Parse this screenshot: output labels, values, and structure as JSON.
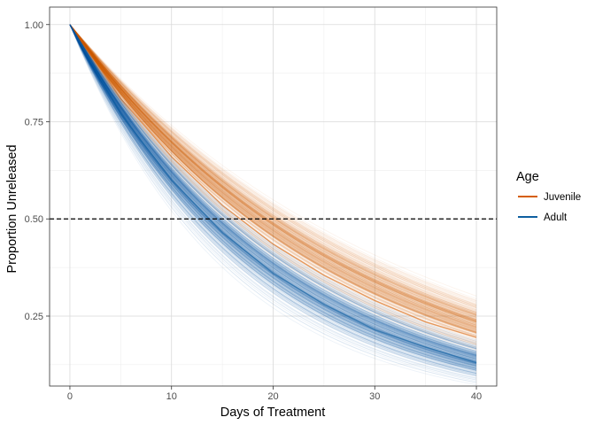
{
  "chart_data": {
    "type": "line",
    "xlabel": "Days of Treatment",
    "ylabel": "Proportion Unreleased",
    "xlim": [
      -2,
      42
    ],
    "ylim": [
      0.07,
      1.045
    ],
    "x_ticks": [
      0,
      10,
      20,
      30,
      40
    ],
    "x_tick_labels": [
      "0",
      "10",
      "20",
      "30",
      "40"
    ],
    "y_ticks": [
      0.25,
      0.5,
      0.75,
      1.0
    ],
    "y_tick_labels": [
      "0.25",
      "0.50",
      "0.75",
      "1.00"
    ],
    "grid": true,
    "reference_line": {
      "y": 0.5,
      "style": "dashed",
      "color": "#000000"
    },
    "legend": {
      "title": "Age",
      "position": "right",
      "entries": [
        {
          "label": "Juvenile",
          "color": "#D55E00"
        },
        {
          "label": "Adult",
          "color": "#0E5FA0"
        }
      ]
    },
    "series": [
      {
        "name": "Juvenile",
        "color": "#D55E00",
        "x": [
          0,
          5,
          10,
          15,
          20,
          25,
          30,
          35,
          40
        ],
        "y_center": [
          1.0,
          0.81,
          0.66,
          0.535,
          0.435,
          0.355,
          0.29,
          0.235,
          0.195
        ],
        "y_upper_at_40": 0.31,
        "y_lower_at_40": 0.15
      },
      {
        "name": "Adult",
        "color": "#0E5FA0",
        "x": [
          0,
          5,
          10,
          15,
          20,
          25,
          30,
          35,
          40
        ],
        "y_center": [
          1.0,
          0.77,
          0.6,
          0.465,
          0.36,
          0.28,
          0.215,
          0.17,
          0.13
        ],
        "y_upper_at_40": 0.2,
        "y_lower_at_40": 0.07
      }
    ]
  }
}
